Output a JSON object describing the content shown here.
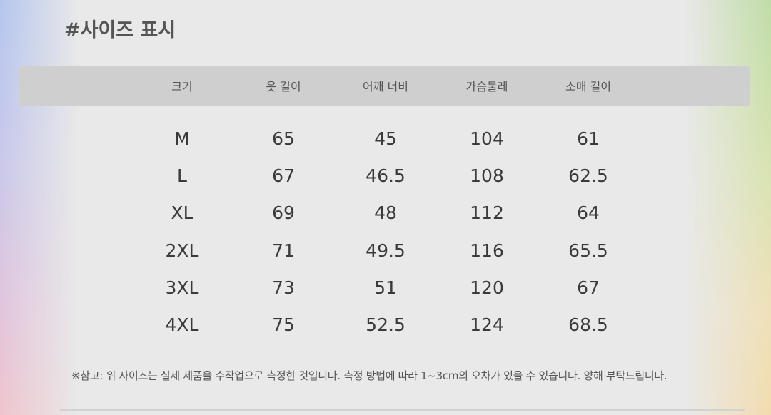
{
  "title": "#사이즈 표시",
  "table": {
    "headers": [
      "크기",
      "옷 길이",
      "어깨 너비",
      "가슴둘레",
      "소매 길이"
    ],
    "rows": [
      [
        "M",
        "65",
        "45",
        "104",
        "61"
      ],
      [
        "L",
        "67",
        "46.5",
        "108",
        "62.5"
      ],
      [
        "XL",
        "69",
        "48",
        "112",
        "64"
      ],
      [
        "2XL",
        "71",
        "49.5",
        "116",
        "65.5"
      ],
      [
        "3XL",
        "73",
        "51",
        "120",
        "67"
      ],
      [
        "4XL",
        "75",
        "52.5",
        "124",
        "68.5"
      ]
    ]
  },
  "note": "※참고: 위 사이즈는 실제 제품을 수작업으로 측정한 것입니다. 측정 방법에 따라 1~3cm의 오차가 있을 수 있습니다. 양해 부탁드립니다."
}
